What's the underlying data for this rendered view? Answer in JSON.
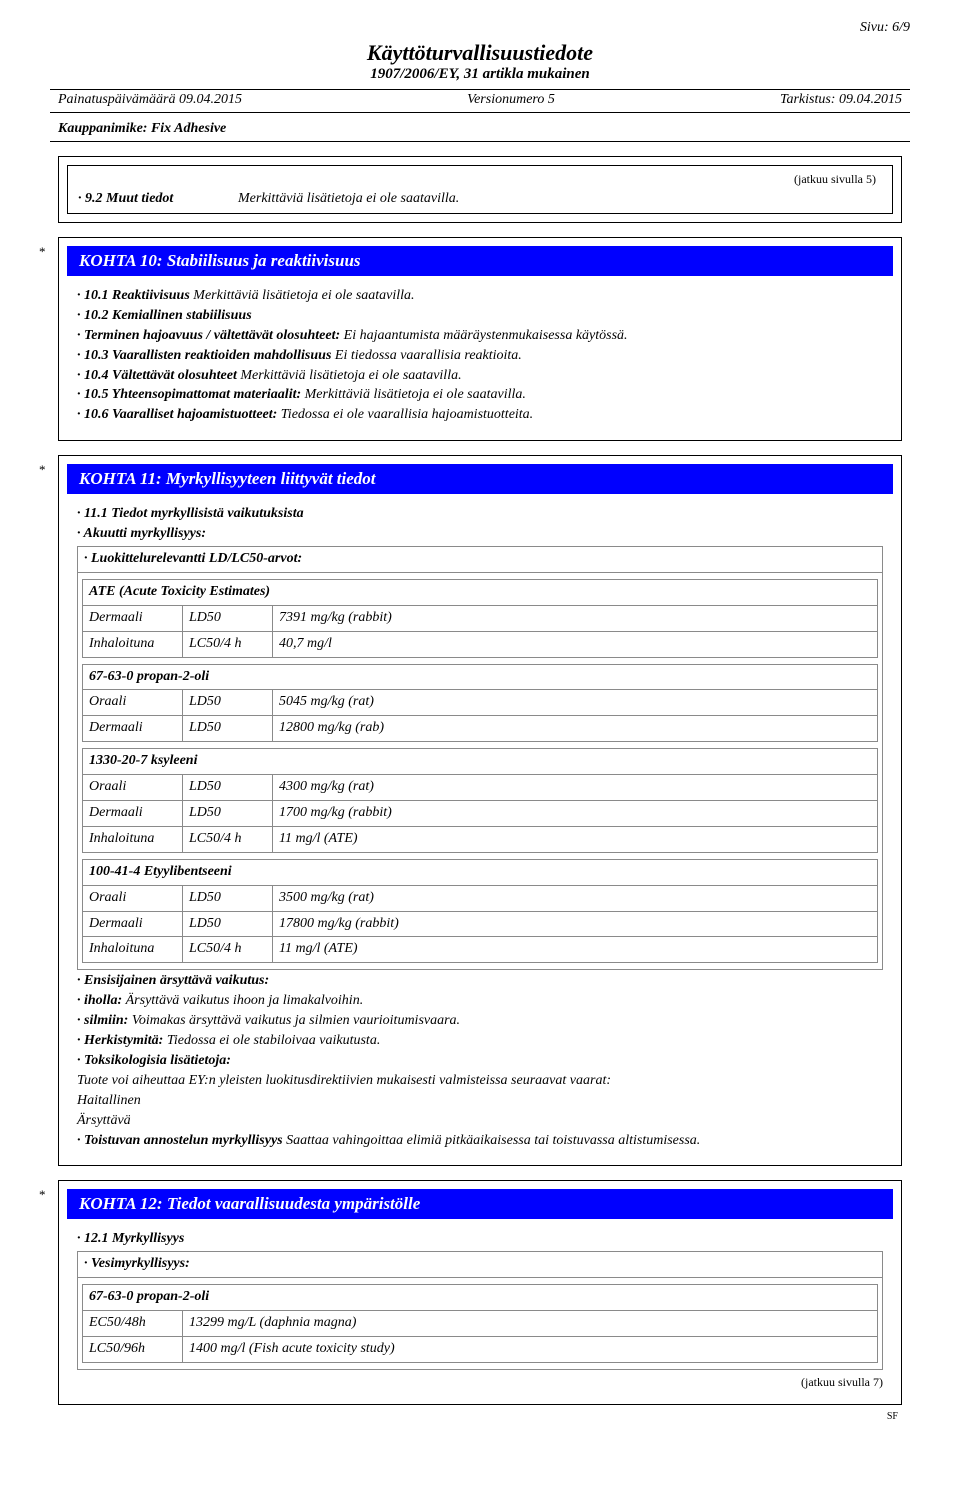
{
  "page_number_label": "Sivu: 6/9",
  "doc_title": "Käyttöturvallisuustiedote",
  "doc_subtitle": "1907/2006/EY, 31 artikla mukainen",
  "print_date_label": "Painatuspäivämäärä 09.04.2015",
  "version_label": "Versionumero 5",
  "revision_label": "Tarkistus: 09.04.2015",
  "trade_name": "Kauppanimike: Fix Adhesive",
  "continued_from": "(jatkuu sivulla 5)",
  "continued_to": "(jatkuu sivulla 7)",
  "sf_mark": "SF",
  "star": "*",
  "block9": {
    "item_label": "· 9.2 Muut tiedot",
    "item_value": "Merkittäviä lisätietoja ei ole saatavilla."
  },
  "section10": {
    "header": "KOHTA 10: Stabiilisuus ja reaktiivisuus",
    "lines": [
      {
        "lead": "· 10.1 Reaktiivisuus",
        "text": " Merkittäviä lisätietoja ei ole saatavilla."
      },
      {
        "lead": "· 10.2 Kemiallinen stabiilisuus",
        "text": ""
      },
      {
        "lead": "· Terminen hajoavuus / vältettävät olosuhteet:",
        "text": " Ei hajaantumista määräystenmukaisessa käytössä."
      },
      {
        "lead": "· 10.3 Vaarallisten reaktioiden mahdollisuus",
        "text": " Ei tiedossa vaarallisia reaktioita."
      },
      {
        "lead": "· 10.4 Vältettävät olosuhteet",
        "text": " Merkittäviä lisätietoja ei ole saatavilla."
      },
      {
        "lead": "· 10.5 Yhteensopimattomat materiaalit:",
        "text": " Merkittäviä lisätietoja ei ole saatavilla."
      },
      {
        "lead": "· 10.6 Vaaralliset hajoamistuotteet:",
        "text": " Tiedossa ei ole vaarallisia hajoamistuotteita."
      }
    ]
  },
  "section11": {
    "header": "KOHTA 11: Myrkyllisyyteen liittyvät tiedot",
    "intro1": "· 11.1 Tiedot myrkyllisistä vaikutuksista",
    "intro2": "· Akuutti myrkyllisyys:",
    "class_header": "· Luokittelurelevantti LD/LC50-arvot:",
    "tox": {
      "groups": [
        {
          "title": "ATE (Acute Toxicity Estimates)",
          "rows": [
            {
              "route": "Dermaali",
              "metric": "LD50",
              "value": "7391 mg/kg (rabbit)"
            },
            {
              "route": "Inhaloituna",
              "metric": "LC50/4 h",
              "value": "40,7 mg/l"
            }
          ]
        },
        {
          "title": "67-63-0 propan-2-oli",
          "rows": [
            {
              "route": "Oraali",
              "metric": "LD50",
              "value": "5045 mg/kg (rat)"
            },
            {
              "route": "Dermaali",
              "metric": "LD50",
              "value": "12800 mg/kg (rab)"
            }
          ]
        },
        {
          "title": "1330-20-7 ksyleeni",
          "rows": [
            {
              "route": "Oraali",
              "metric": "LD50",
              "value": "4300 mg/kg (rat)"
            },
            {
              "route": "Dermaali",
              "metric": "LD50",
              "value": "1700 mg/kg (rabbit)"
            },
            {
              "route": "Inhaloituna",
              "metric": "LC50/4 h",
              "value": "11 mg/l (ATE)"
            }
          ]
        },
        {
          "title": "100-41-4 Etyylibentseeni",
          "rows": [
            {
              "route": "Oraali",
              "metric": "LD50",
              "value": "3500 mg/kg (rat)"
            },
            {
              "route": "Dermaali",
              "metric": "LD50",
              "value": "17800 mg/kg (rabbit)"
            },
            {
              "route": "Inhaloituna",
              "metric": "LC50/4 h",
              "value": "11 mg/l (ATE)"
            }
          ]
        }
      ]
    },
    "after": [
      {
        "lead": "· Ensisijainen ärsyttävä vaikutus:",
        "text": ""
      },
      {
        "lead": "· iholla:",
        "text": " Ärsyttävä vaikutus ihoon ja limakalvoihin."
      },
      {
        "lead": "· silmiin:",
        "text": " Voimakas ärsyttävä vaikutus ja silmien vaurioitumisvaara."
      },
      {
        "lead": "· Herkistymitä:",
        "text": " Tiedossa ei ole stabiloivaa vaikutusta."
      },
      {
        "lead": "· Toksikologisia lisätietoja:",
        "text": ""
      },
      {
        "lead": "",
        "text": "Tuote voi aiheuttaa EY:n yleisten luokitusdirektiivien mukaisesti valmisteissa seuraavat vaarat:"
      },
      {
        "lead": "",
        "text": "Haitallinen"
      },
      {
        "lead": "",
        "text": "Ärsyttävä"
      },
      {
        "lead": "· Toistuvan annostelun myrkyllisyys",
        "text": " Saattaa vahingoittaa elimiä pitkäaikaisessa tai toistuvassa altistumisessa."
      }
    ]
  },
  "section12": {
    "header": "KOHTA 12: Tiedot vaarallisuudesta ympäristölle",
    "intro1": "· 12.1 Myrkyllisyys",
    "intro2": "· Vesimyrkyllisyys:",
    "tox": {
      "groups": [
        {
          "title": "67-63-0 propan-2-oli",
          "rows": [
            {
              "route": "EC50/48h",
              "value": "13299 mg/L (daphnia magna)"
            },
            {
              "route": "LC50/96h",
              "value": "1400 mg/l (Fish acute toxicity study)"
            }
          ]
        }
      ]
    }
  }
}
